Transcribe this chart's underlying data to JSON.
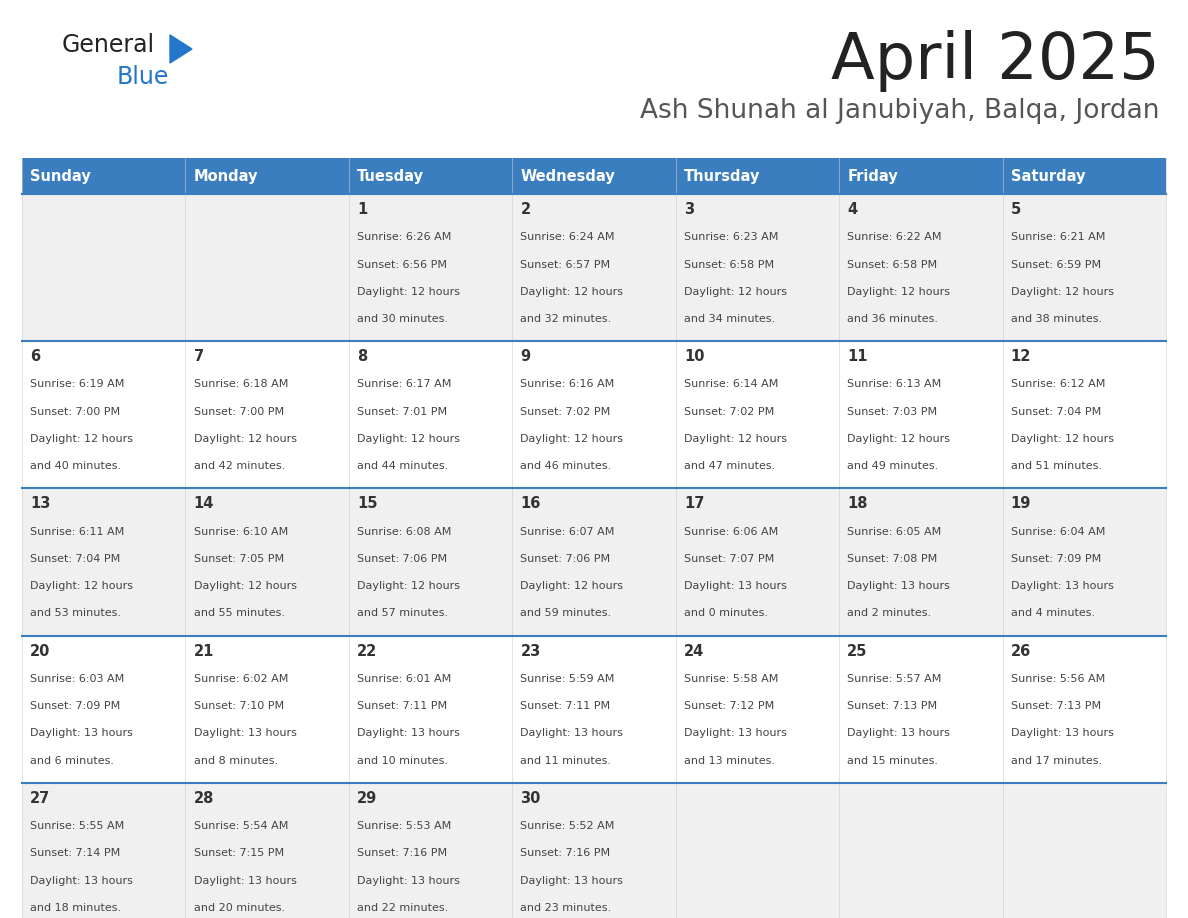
{
  "title": "April 2025",
  "subtitle": "Ash Shunah al Janubiyah, Balqa, Jordan",
  "days_of_week": [
    "Sunday",
    "Monday",
    "Tuesday",
    "Wednesday",
    "Thursday",
    "Friday",
    "Saturday"
  ],
  "header_bg": "#3a7ebf",
  "header_text_color": "#ffffff",
  "row_bg_even": "#f0f0f0",
  "row_bg_odd": "#ffffff",
  "cell_border_color": "#3a7ebf",
  "day_number_color": "#333333",
  "text_color": "#444444",
  "title_color": "#222222",
  "subtitle_color": "#555555",
  "logo_general_color": "#222222",
  "logo_blue_color": "#2277cc",
  "logo_triangle_color": "#2277cc",
  "calendar": [
    [
      {
        "day": "",
        "sunrise": "",
        "sunset": "",
        "daylight": ""
      },
      {
        "day": "",
        "sunrise": "",
        "sunset": "",
        "daylight": ""
      },
      {
        "day": "1",
        "sunrise": "Sunrise: 6:26 AM",
        "sunset": "Sunset: 6:56 PM",
        "daylight": "Daylight: 12 hours\nand 30 minutes."
      },
      {
        "day": "2",
        "sunrise": "Sunrise: 6:24 AM",
        "sunset": "Sunset: 6:57 PM",
        "daylight": "Daylight: 12 hours\nand 32 minutes."
      },
      {
        "day": "3",
        "sunrise": "Sunrise: 6:23 AM",
        "sunset": "Sunset: 6:58 PM",
        "daylight": "Daylight: 12 hours\nand 34 minutes."
      },
      {
        "day": "4",
        "sunrise": "Sunrise: 6:22 AM",
        "sunset": "Sunset: 6:58 PM",
        "daylight": "Daylight: 12 hours\nand 36 minutes."
      },
      {
        "day": "5",
        "sunrise": "Sunrise: 6:21 AM",
        "sunset": "Sunset: 6:59 PM",
        "daylight": "Daylight: 12 hours\nand 38 minutes."
      }
    ],
    [
      {
        "day": "6",
        "sunrise": "Sunrise: 6:19 AM",
        "sunset": "Sunset: 7:00 PM",
        "daylight": "Daylight: 12 hours\nand 40 minutes."
      },
      {
        "day": "7",
        "sunrise": "Sunrise: 6:18 AM",
        "sunset": "Sunset: 7:00 PM",
        "daylight": "Daylight: 12 hours\nand 42 minutes."
      },
      {
        "day": "8",
        "sunrise": "Sunrise: 6:17 AM",
        "sunset": "Sunset: 7:01 PM",
        "daylight": "Daylight: 12 hours\nand 44 minutes."
      },
      {
        "day": "9",
        "sunrise": "Sunrise: 6:16 AM",
        "sunset": "Sunset: 7:02 PM",
        "daylight": "Daylight: 12 hours\nand 46 minutes."
      },
      {
        "day": "10",
        "sunrise": "Sunrise: 6:14 AM",
        "sunset": "Sunset: 7:02 PM",
        "daylight": "Daylight: 12 hours\nand 47 minutes."
      },
      {
        "day": "11",
        "sunrise": "Sunrise: 6:13 AM",
        "sunset": "Sunset: 7:03 PM",
        "daylight": "Daylight: 12 hours\nand 49 minutes."
      },
      {
        "day": "12",
        "sunrise": "Sunrise: 6:12 AM",
        "sunset": "Sunset: 7:04 PM",
        "daylight": "Daylight: 12 hours\nand 51 minutes."
      }
    ],
    [
      {
        "day": "13",
        "sunrise": "Sunrise: 6:11 AM",
        "sunset": "Sunset: 7:04 PM",
        "daylight": "Daylight: 12 hours\nand 53 minutes."
      },
      {
        "day": "14",
        "sunrise": "Sunrise: 6:10 AM",
        "sunset": "Sunset: 7:05 PM",
        "daylight": "Daylight: 12 hours\nand 55 minutes."
      },
      {
        "day": "15",
        "sunrise": "Sunrise: 6:08 AM",
        "sunset": "Sunset: 7:06 PM",
        "daylight": "Daylight: 12 hours\nand 57 minutes."
      },
      {
        "day": "16",
        "sunrise": "Sunrise: 6:07 AM",
        "sunset": "Sunset: 7:06 PM",
        "daylight": "Daylight: 12 hours\nand 59 minutes."
      },
      {
        "day": "17",
        "sunrise": "Sunrise: 6:06 AM",
        "sunset": "Sunset: 7:07 PM",
        "daylight": "Daylight: 13 hours\nand 0 minutes."
      },
      {
        "day": "18",
        "sunrise": "Sunrise: 6:05 AM",
        "sunset": "Sunset: 7:08 PM",
        "daylight": "Daylight: 13 hours\nand 2 minutes."
      },
      {
        "day": "19",
        "sunrise": "Sunrise: 6:04 AM",
        "sunset": "Sunset: 7:09 PM",
        "daylight": "Daylight: 13 hours\nand 4 minutes."
      }
    ],
    [
      {
        "day": "20",
        "sunrise": "Sunrise: 6:03 AM",
        "sunset": "Sunset: 7:09 PM",
        "daylight": "Daylight: 13 hours\nand 6 minutes."
      },
      {
        "day": "21",
        "sunrise": "Sunrise: 6:02 AM",
        "sunset": "Sunset: 7:10 PM",
        "daylight": "Daylight: 13 hours\nand 8 minutes."
      },
      {
        "day": "22",
        "sunrise": "Sunrise: 6:01 AM",
        "sunset": "Sunset: 7:11 PM",
        "daylight": "Daylight: 13 hours\nand 10 minutes."
      },
      {
        "day": "23",
        "sunrise": "Sunrise: 5:59 AM",
        "sunset": "Sunset: 7:11 PM",
        "daylight": "Daylight: 13 hours\nand 11 minutes."
      },
      {
        "day": "24",
        "sunrise": "Sunrise: 5:58 AM",
        "sunset": "Sunset: 7:12 PM",
        "daylight": "Daylight: 13 hours\nand 13 minutes."
      },
      {
        "day": "25",
        "sunrise": "Sunrise: 5:57 AM",
        "sunset": "Sunset: 7:13 PM",
        "daylight": "Daylight: 13 hours\nand 15 minutes."
      },
      {
        "day": "26",
        "sunrise": "Sunrise: 5:56 AM",
        "sunset": "Sunset: 7:13 PM",
        "daylight": "Daylight: 13 hours\nand 17 minutes."
      }
    ],
    [
      {
        "day": "27",
        "sunrise": "Sunrise: 5:55 AM",
        "sunset": "Sunset: 7:14 PM",
        "daylight": "Daylight: 13 hours\nand 18 minutes."
      },
      {
        "day": "28",
        "sunrise": "Sunrise: 5:54 AM",
        "sunset": "Sunset: 7:15 PM",
        "daylight": "Daylight: 13 hours\nand 20 minutes."
      },
      {
        "day": "29",
        "sunrise": "Sunrise: 5:53 AM",
        "sunset": "Sunset: 7:16 PM",
        "daylight": "Daylight: 13 hours\nand 22 minutes."
      },
      {
        "day": "30",
        "sunrise": "Sunrise: 5:52 AM",
        "sunset": "Sunset: 7:16 PM",
        "daylight": "Daylight: 13 hours\nand 23 minutes."
      },
      {
        "day": "",
        "sunrise": "",
        "sunset": "",
        "daylight": ""
      },
      {
        "day": "",
        "sunrise": "",
        "sunset": "",
        "daylight": ""
      },
      {
        "day": "",
        "sunrise": "",
        "sunset": "",
        "daylight": ""
      }
    ]
  ]
}
